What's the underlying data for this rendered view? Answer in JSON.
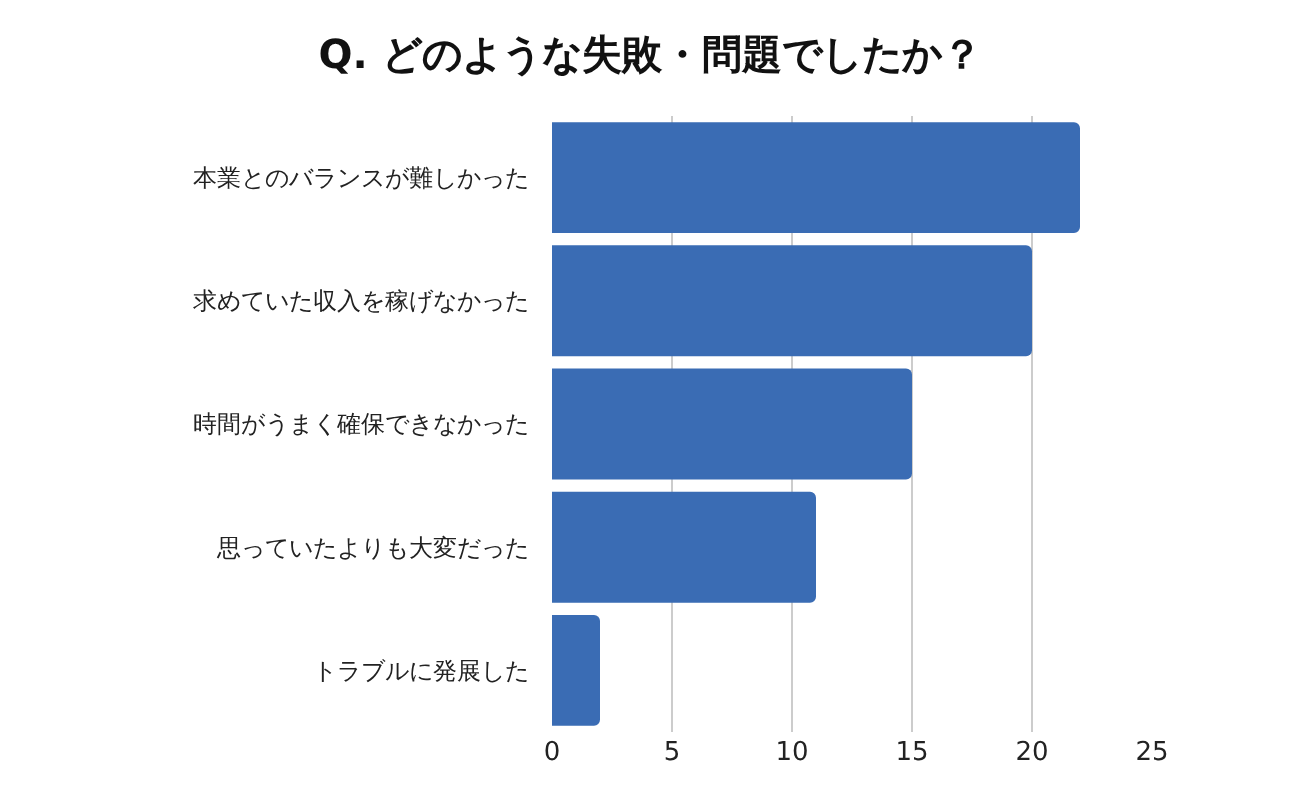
{
  "chart_data": {
    "type": "bar",
    "orientation": "horizontal",
    "title": "Q. どのような失敗・問題でしたか？",
    "categories": [
      "本業とのバランスが難しかった",
      "求めていた収入を稼げなかった",
      "時間がうまく確保できなかった",
      "思っていたよりも大変だった",
      "トラブルに発展した"
    ],
    "values": [
      22,
      20,
      15,
      11,
      2
    ],
    "color": "#3a6cb4",
    "xlim": [
      0,
      25
    ],
    "xticks": [
      0,
      5,
      10,
      15,
      20,
      25
    ],
    "grid": "x",
    "legend": false
  }
}
